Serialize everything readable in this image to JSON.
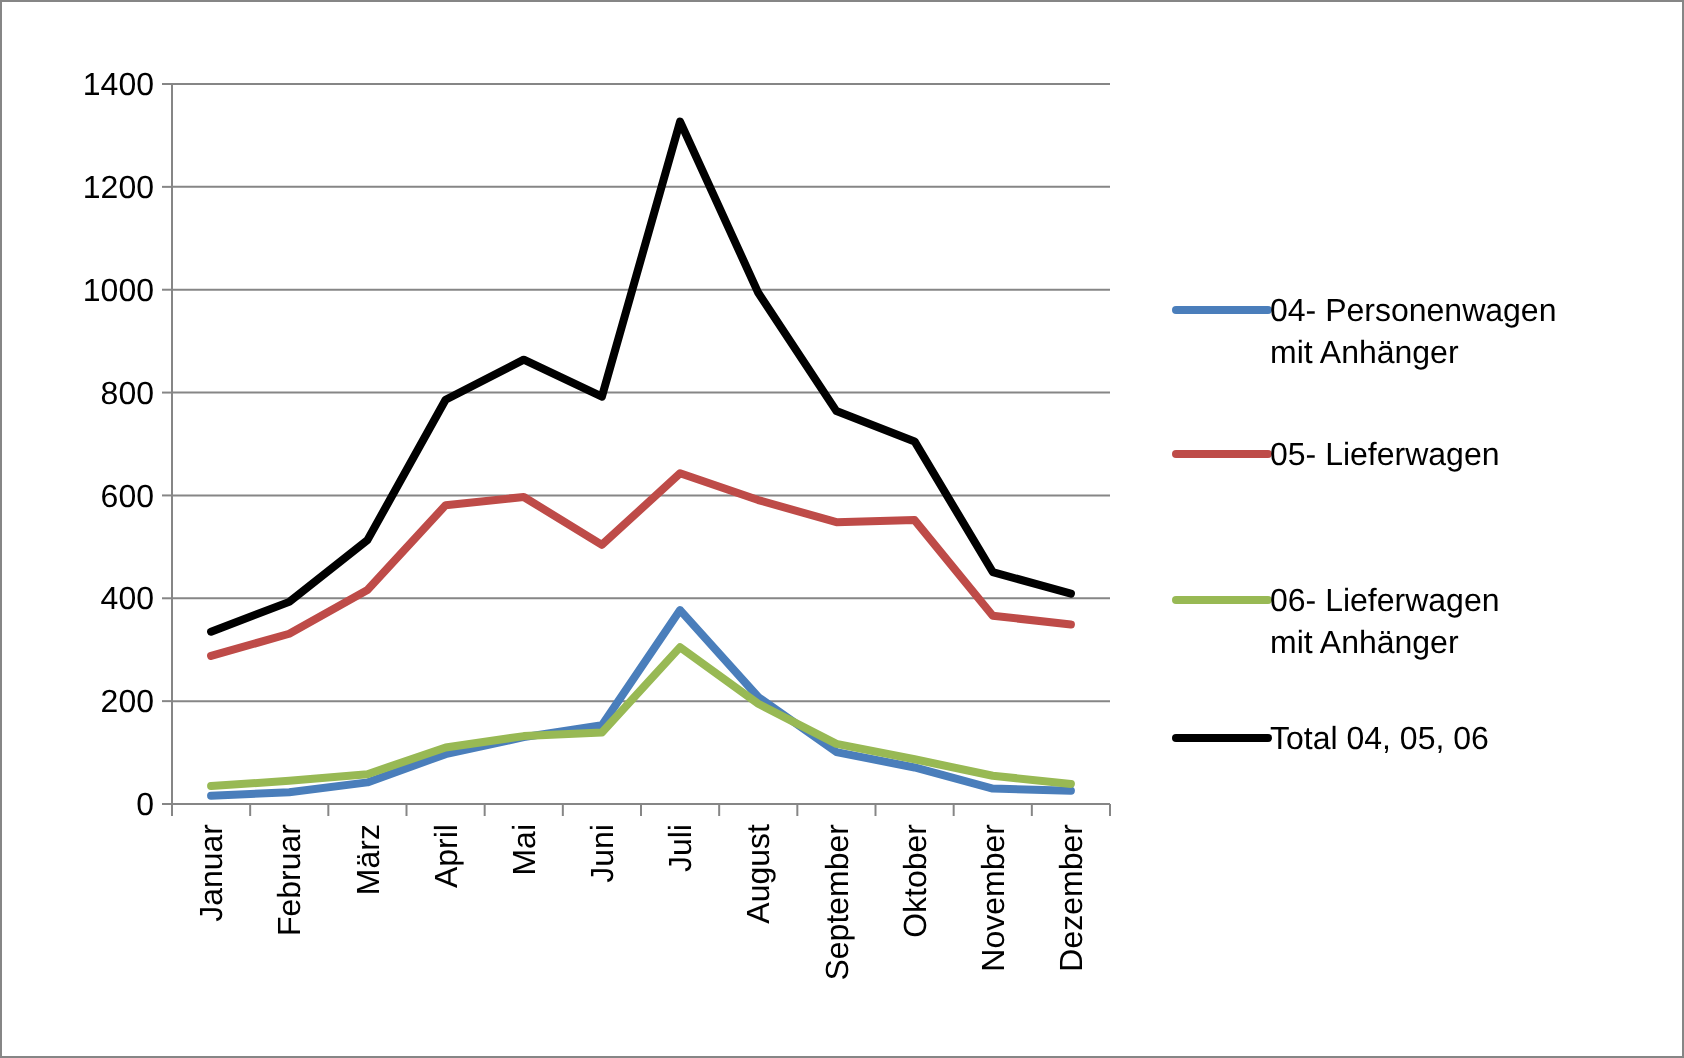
{
  "chart_data": {
    "type": "line",
    "categories": [
      "Januar",
      "Februar",
      "März",
      "April",
      "Mai",
      "Juni",
      "Juli",
      "August",
      "September",
      "Oktober",
      "November",
      "Dezember"
    ],
    "series": [
      {
        "name": "04- Personenwagen mit Anhänger",
        "color": "#4a7ebb",
        "values": [
          16,
          23,
          42,
          97,
          130,
          153,
          377,
          208,
          101,
          71,
          30,
          26
        ]
      },
      {
        "name": "05- Lieferwagen",
        "color": "#be4b48",
        "values": [
          288,
          331,
          416,
          581,
          597,
          504,
          643,
          591,
          548,
          552,
          366,
          349
        ]
      },
      {
        "name": "06- Lieferwagen mit Anhänger",
        "color": "#98b954",
        "values": [
          35,
          45,
          58,
          110,
          132,
          139,
          305,
          195,
          117,
          87,
          55,
          39
        ]
      },
      {
        "name": "Total 04, 05, 06",
        "color": "#000000",
        "values": [
          335,
          393,
          513,
          786,
          864,
          792,
          1327,
          994,
          764,
          705,
          451,
          409
        ]
      }
    ],
    "ylim": [
      0,
      1400
    ],
    "yticks": [
      0,
      200,
      400,
      600,
      800,
      1000,
      1200,
      1400
    ],
    "grid": "y",
    "legend": "right",
    "marker": "none",
    "line_style": "solid"
  }
}
